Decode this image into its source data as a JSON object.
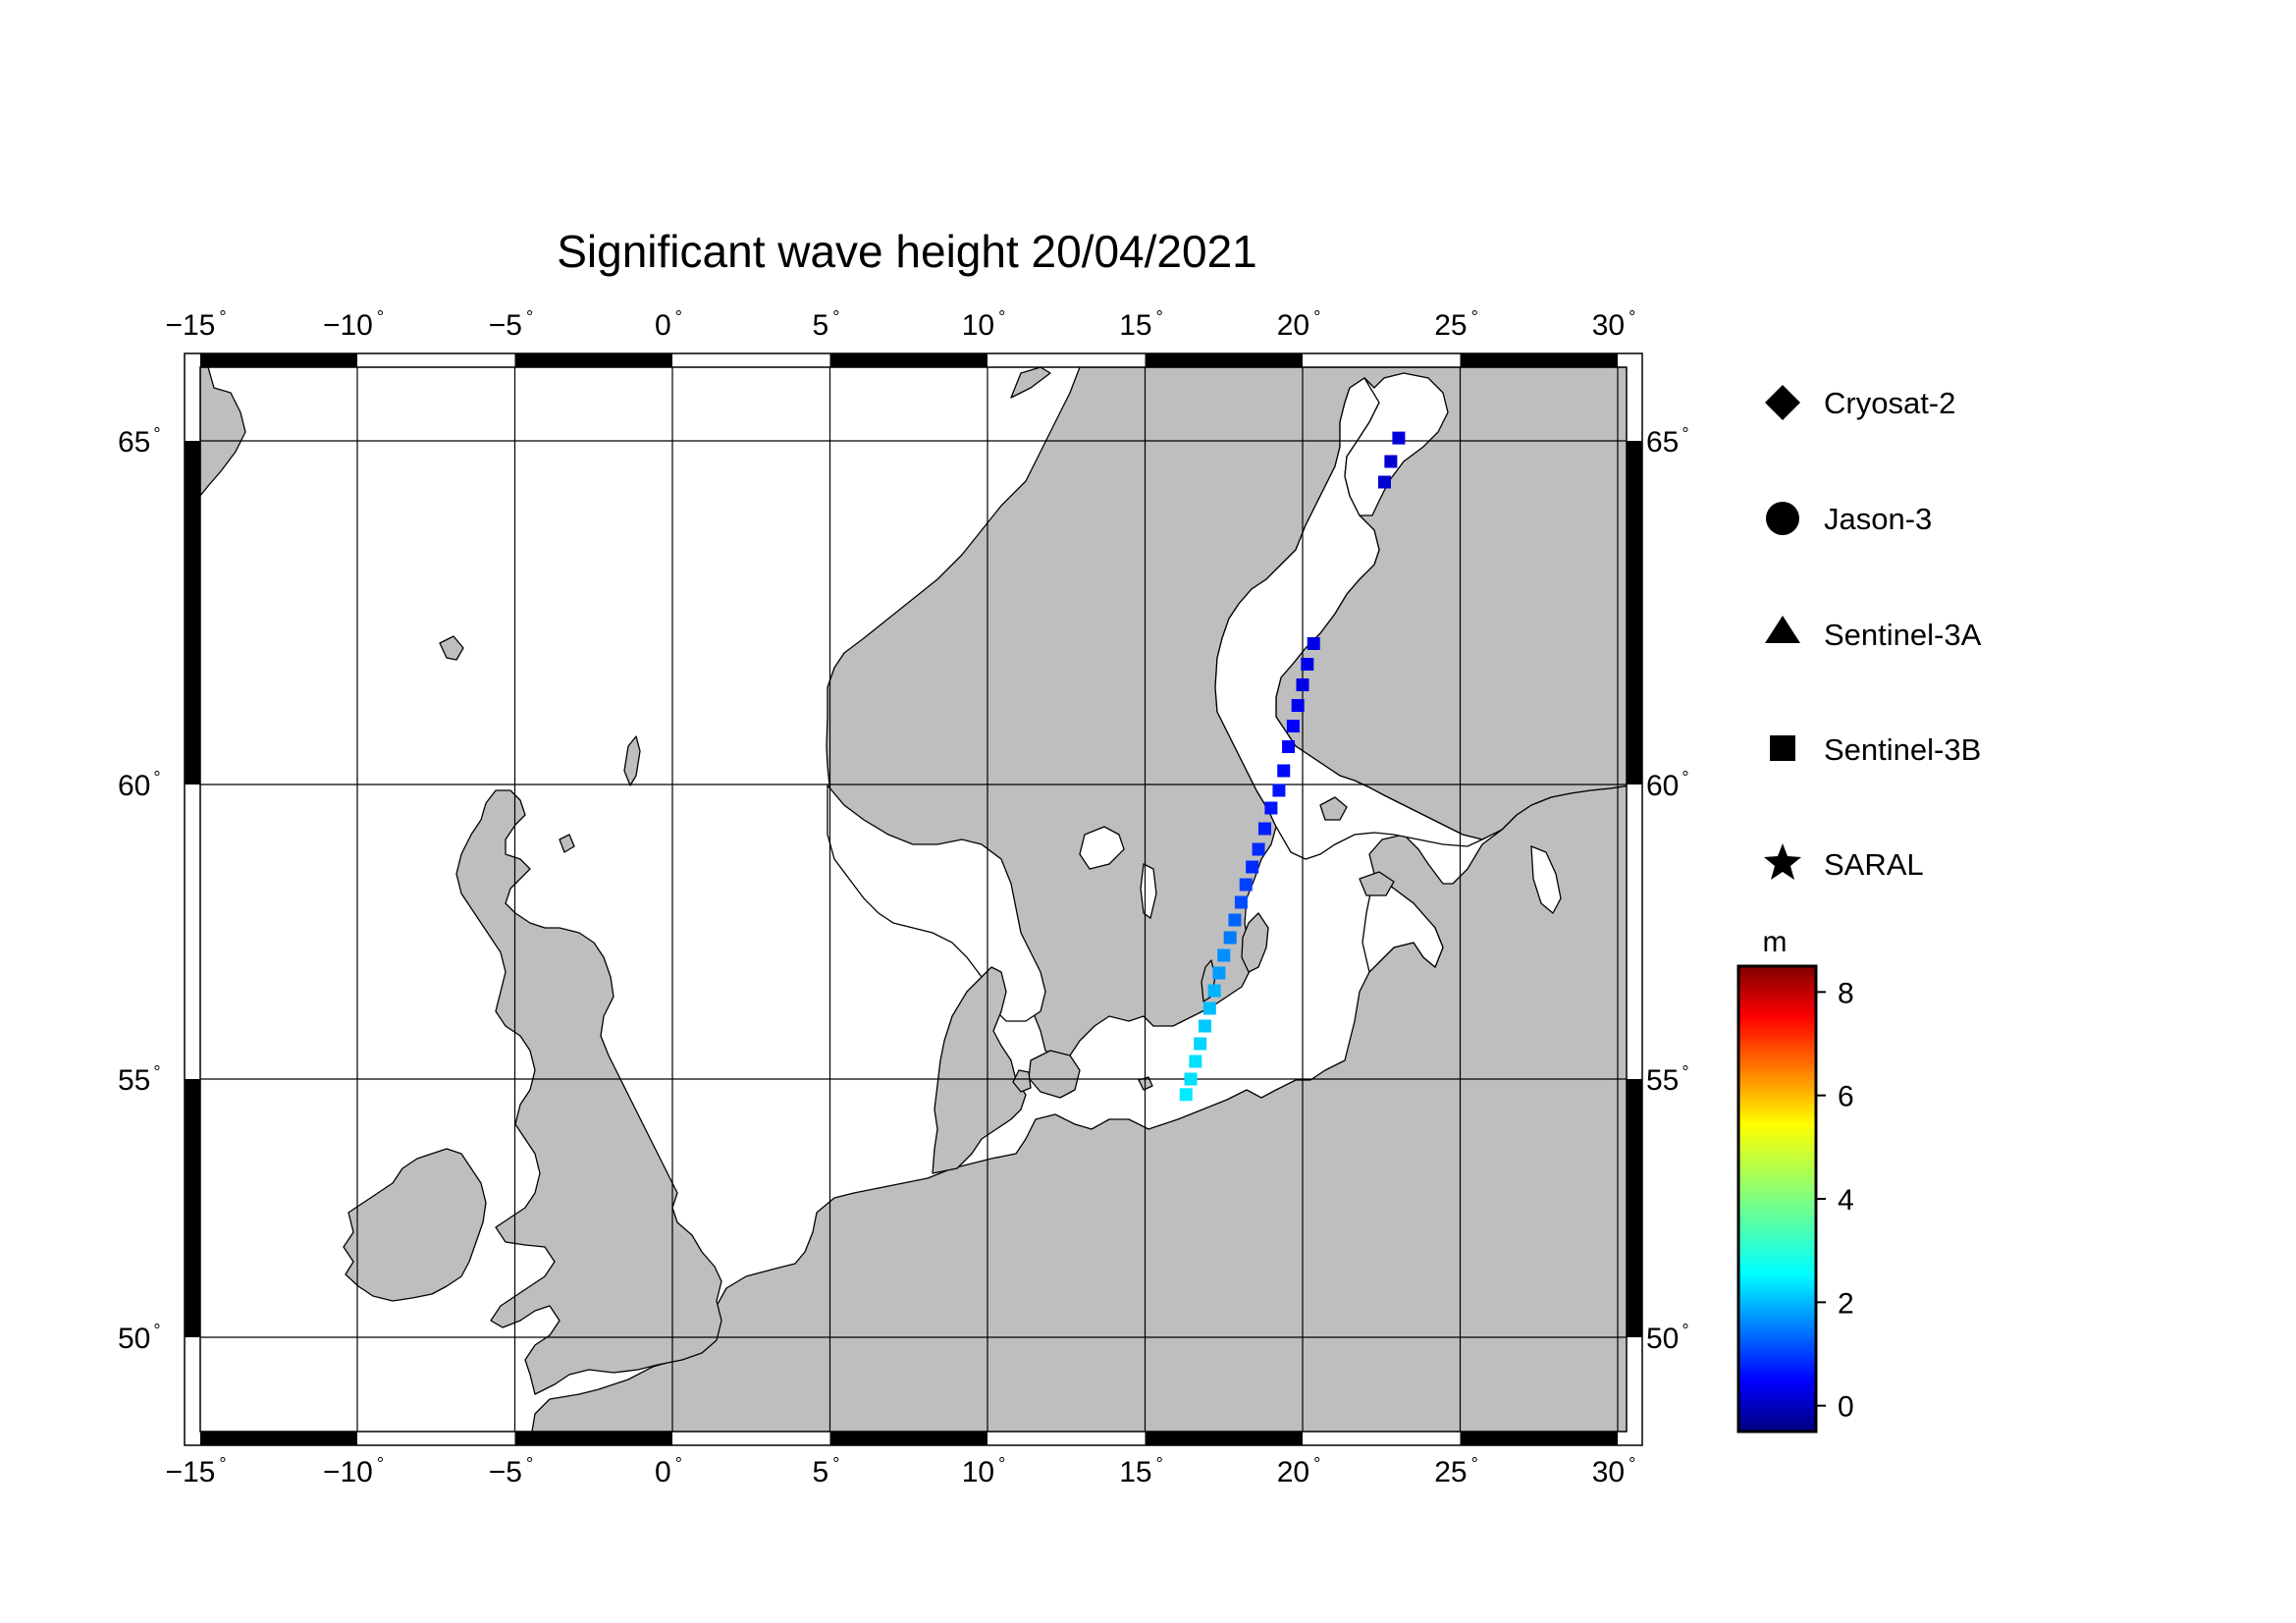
{
  "title": "Significant wave height 20/04/2021",
  "map": {
    "lon_ticks": [
      -15,
      -10,
      -5,
      0,
      5,
      10,
      15,
      20,
      25,
      30
    ],
    "lat_ticks": [
      50,
      55,
      60,
      65
    ],
    "lon_range": [
      -15.5,
      30.5
    ],
    "lat_range": [
      48.3,
      66.3
    ],
    "degree_symbol": "°",
    "colors": {
      "land": "#bebebe",
      "sea": "#ffffff"
    }
  },
  "legend": {
    "items": [
      {
        "label": "Cryosat-2",
        "icon": "diamond-icon"
      },
      {
        "label": "Jason-3",
        "icon": "circle-icon"
      },
      {
        "label": "Sentinel-3A",
        "icon": "triangle-icon"
      },
      {
        "label": "Sentinel-3B",
        "icon": "square-icon"
      },
      {
        "label": "SARAL",
        "icon": "star-icon"
      }
    ]
  },
  "colorbar": {
    "unit": "m",
    "range": [
      -0.5,
      8.5
    ],
    "ticks": [
      "0",
      "2",
      "4",
      "6",
      "8"
    ],
    "colormap": "jet"
  },
  "observations": {
    "satellite": "Sentinel-3B",
    "marker": "square",
    "points": [
      {
        "lon": 16.3,
        "lat": 54.7,
        "swh": 2.7
      },
      {
        "lon": 16.45,
        "lat": 55.0,
        "swh": 2.6
      },
      {
        "lon": 16.6,
        "lat": 55.3,
        "swh": 2.6
      },
      {
        "lon": 16.75,
        "lat": 55.6,
        "swh": 2.5
      },
      {
        "lon": 16.9,
        "lat": 55.9,
        "swh": 2.4
      },
      {
        "lon": 17.05,
        "lat": 56.2,
        "swh": 2.3
      },
      {
        "lon": 17.2,
        "lat": 56.5,
        "swh": 2.2
      },
      {
        "lon": 17.35,
        "lat": 56.8,
        "swh": 2.0
      },
      {
        "lon": 17.5,
        "lat": 57.1,
        "swh": 1.9
      },
      {
        "lon": 17.7,
        "lat": 57.4,
        "swh": 1.7
      },
      {
        "lon": 17.85,
        "lat": 57.7,
        "swh": 1.5
      },
      {
        "lon": 18.05,
        "lat": 58.0,
        "swh": 1.3
      },
      {
        "lon": 18.2,
        "lat": 58.3,
        "swh": 1.2
      },
      {
        "lon": 18.4,
        "lat": 58.6,
        "swh": 1.0
      },
      {
        "lon": 18.6,
        "lat": 58.9,
        "swh": 1.0
      },
      {
        "lon": 18.8,
        "lat": 59.25,
        "swh": 0.9
      },
      {
        "lon": 19.0,
        "lat": 59.6,
        "swh": 0.8
      },
      {
        "lon": 19.25,
        "lat": 59.9,
        "swh": 0.8
      },
      {
        "lon": 19.4,
        "lat": 60.2,
        "swh": 0.7
      },
      {
        "lon": 19.55,
        "lat": 60.55,
        "swh": 0.6
      },
      {
        "lon": 19.7,
        "lat": 60.85,
        "swh": 0.6
      },
      {
        "lon": 19.85,
        "lat": 61.15,
        "swh": 0.5
      },
      {
        "lon": 20.0,
        "lat": 61.45,
        "swh": 0.4
      },
      {
        "lon": 20.15,
        "lat": 61.75,
        "swh": 0.4
      },
      {
        "lon": 20.35,
        "lat": 62.05,
        "swh": 0.4
      },
      {
        "lon": 22.6,
        "lat": 64.4,
        "swh": 0.2
      },
      {
        "lon": 22.8,
        "lat": 64.7,
        "swh": 0.2
      },
      {
        "lon": 23.05,
        "lat": 65.05,
        "swh": 0.3
      }
    ]
  }
}
